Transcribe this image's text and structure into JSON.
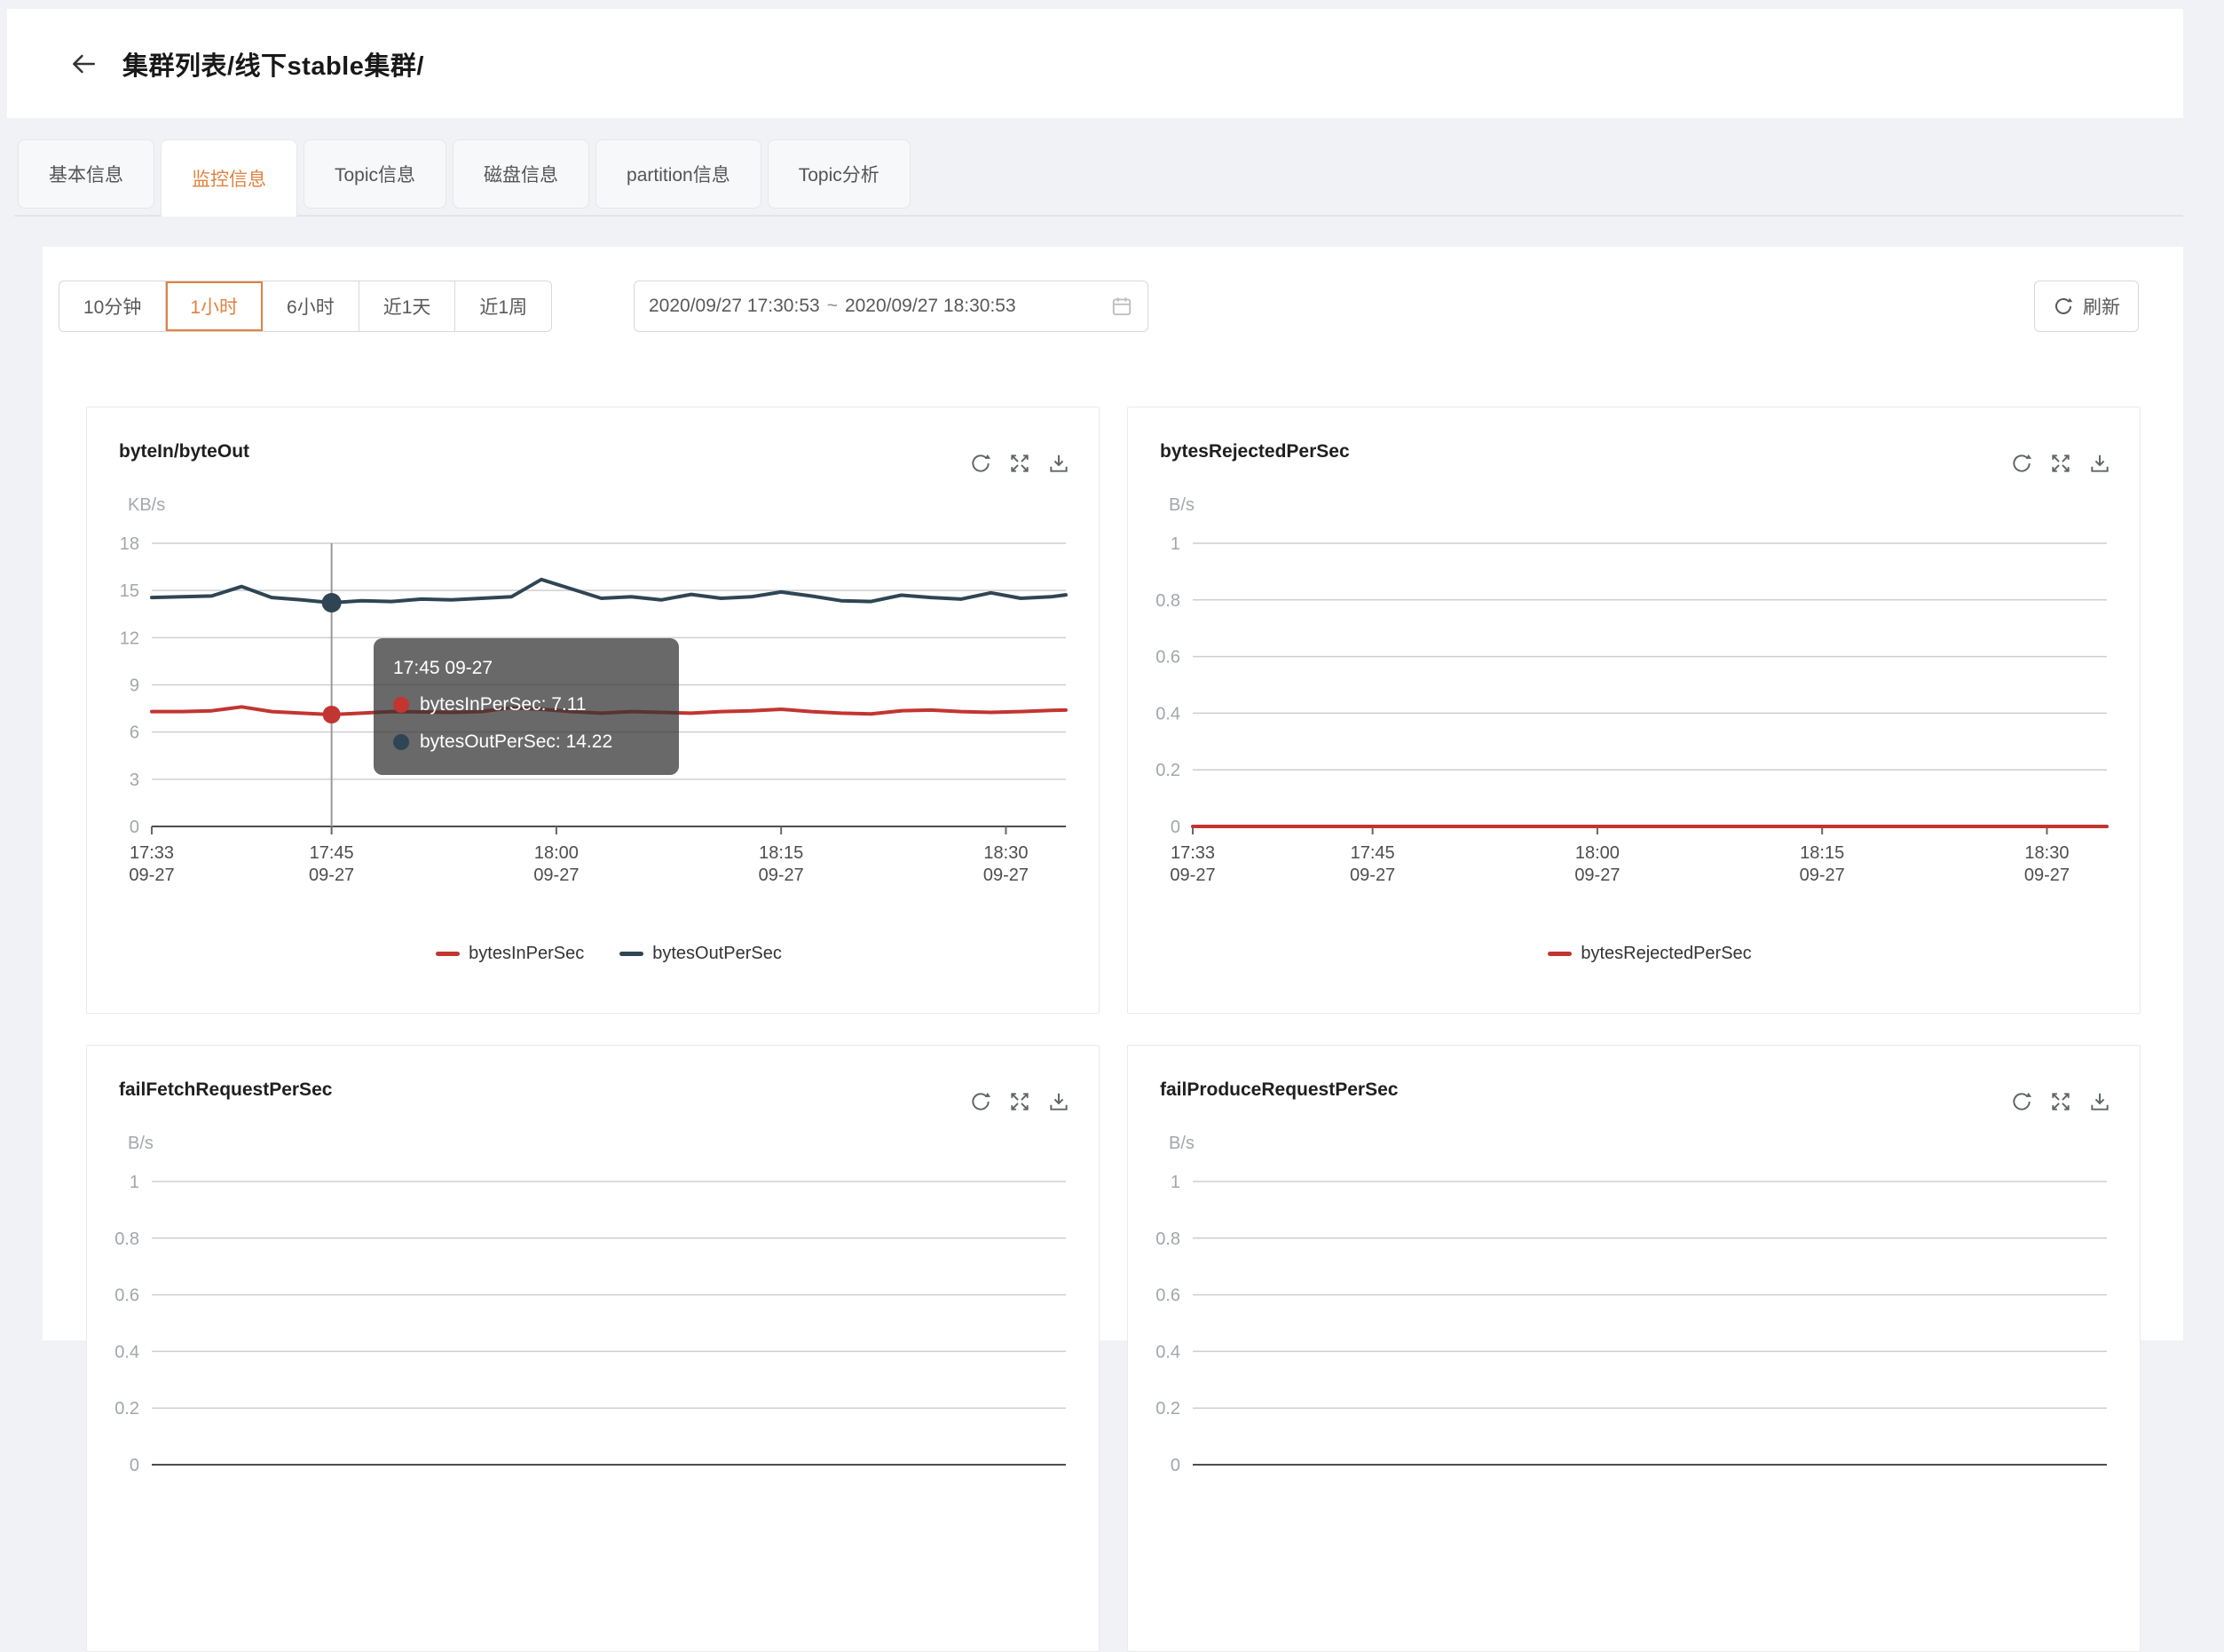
{
  "header": {
    "breadcrumb": "集群列表/线下stable集群/"
  },
  "tabs": [
    {
      "label": "基本信息",
      "active": false
    },
    {
      "label": "监控信息",
      "active": true
    },
    {
      "label": "Topic信息",
      "active": false
    },
    {
      "label": "磁盘信息",
      "active": false
    },
    {
      "label": "partition信息",
      "active": false
    },
    {
      "label": "Topic分析",
      "active": false
    }
  ],
  "toolbar": {
    "ranges": [
      {
        "label": "10分钟",
        "active": false
      },
      {
        "label": "1小时",
        "active": true
      },
      {
        "label": "6小时",
        "active": false
      },
      {
        "label": "近1天",
        "active": false
      },
      {
        "label": "近1周",
        "active": false
      }
    ],
    "date_start": "2020/09/27 17:30:53",
    "date_separator": "~",
    "date_end": "2020/09/27 18:30:53",
    "refresh_label": "刷新"
  },
  "theme": {
    "accent_orange": "#e0823f",
    "series_red": "#c23531",
    "series_blue": "#2f4554",
    "grid_line": "#cfcfcf",
    "axis_line": "#4d4d4d"
  },
  "chart_data": [
    {
      "type": "line",
      "title": "byteIn/byteOut",
      "ylabel": "KB/s",
      "ylim": [
        0,
        18
      ],
      "yticks": [
        0,
        3,
        6,
        9,
        12,
        15,
        18
      ],
      "x_axis": {
        "range_minutes": [
          0,
          61
        ],
        "ticks": [
          {
            "at_minute": 0,
            "time": "17:33",
            "date": "09-27"
          },
          {
            "at_minute": 12,
            "time": "17:45",
            "date": "09-27"
          },
          {
            "at_minute": 27,
            "time": "18:00",
            "date": "09-27"
          },
          {
            "at_minute": 42,
            "time": "18:15",
            "date": "09-27"
          },
          {
            "at_minute": 57,
            "time": "18:30",
            "date": "09-27"
          }
        ]
      },
      "series": [
        {
          "name": "bytesInPerSec",
          "color": "#c23531",
          "x_minutes": [
            0,
            2,
            4,
            6,
            8,
            10,
            12,
            14,
            16,
            18,
            20,
            22,
            24,
            26,
            28,
            30,
            32,
            34,
            36,
            38,
            40,
            42,
            44,
            46,
            48,
            50,
            52,
            54,
            56,
            58,
            60,
            61
          ],
          "values": [
            7.3,
            7.3,
            7.35,
            7.6,
            7.3,
            7.2,
            7.11,
            7.2,
            7.3,
            7.28,
            7.25,
            7.3,
            7.55,
            7.45,
            7.3,
            7.2,
            7.3,
            7.25,
            7.2,
            7.3,
            7.35,
            7.45,
            7.3,
            7.2,
            7.15,
            7.35,
            7.4,
            7.3,
            7.25,
            7.3,
            7.38,
            7.4
          ]
        },
        {
          "name": "bytesOutPerSec",
          "color": "#2f4554",
          "x_minutes": [
            0,
            2,
            4,
            6,
            8,
            10,
            12,
            14,
            16,
            18,
            20,
            22,
            24,
            26,
            28,
            30,
            32,
            34,
            36,
            38,
            40,
            42,
            44,
            46,
            48,
            50,
            52,
            54,
            56,
            58,
            60,
            61
          ],
          "values": [
            14.55,
            14.6,
            14.65,
            15.25,
            14.55,
            14.4,
            14.22,
            14.35,
            14.3,
            14.45,
            14.4,
            14.5,
            14.6,
            15.7,
            15.1,
            14.5,
            14.6,
            14.4,
            14.75,
            14.5,
            14.6,
            14.9,
            14.65,
            14.35,
            14.3,
            14.7,
            14.55,
            14.45,
            14.85,
            14.5,
            14.6,
            14.72
          ]
        }
      ],
      "tooltip": {
        "time": "17:45 09-27",
        "at_minute": 12,
        "marker_values": [
          7.11,
          14.22
        ],
        "rows": [
          {
            "text": "bytesInPerSec: 7.11",
            "color": "#c23531"
          },
          {
            "text": "bytesOutPerSec: 14.22",
            "color": "#2f4554"
          }
        ]
      }
    },
    {
      "type": "line",
      "title": "bytesRejectedPerSec",
      "ylabel": "B/s",
      "ylim": [
        0,
        1
      ],
      "yticks": [
        0,
        0.2,
        0.4,
        0.6,
        0.8,
        1
      ],
      "x_axis": {
        "range_minutes": [
          0,
          61
        ],
        "ticks": [
          {
            "at_minute": 0,
            "time": "17:33",
            "date": "09-27"
          },
          {
            "at_minute": 12,
            "time": "17:45",
            "date": "09-27"
          },
          {
            "at_minute": 27,
            "time": "18:00",
            "date": "09-27"
          },
          {
            "at_minute": 42,
            "time": "18:15",
            "date": "09-27"
          },
          {
            "at_minute": 57,
            "time": "18:30",
            "date": "09-27"
          }
        ]
      },
      "series": [
        {
          "name": "bytesRejectedPerSec",
          "color": "#c23531",
          "x_minutes": [
            0,
            61
          ],
          "values": [
            0,
            0
          ]
        }
      ]
    },
    {
      "type": "line",
      "title": "failFetchRequestPerSec",
      "ylabel": "B/s",
      "ylim": [
        0,
        1
      ],
      "yticks": [
        0,
        0.2,
        0.4,
        0.6,
        0.8,
        1
      ],
      "series": []
    },
    {
      "type": "line",
      "title": "failProduceRequestPerSec",
      "ylabel": "B/s",
      "ylim": [
        0,
        1
      ],
      "yticks": [
        0,
        0.2,
        0.4,
        0.6,
        0.8,
        1
      ],
      "series": []
    }
  ]
}
